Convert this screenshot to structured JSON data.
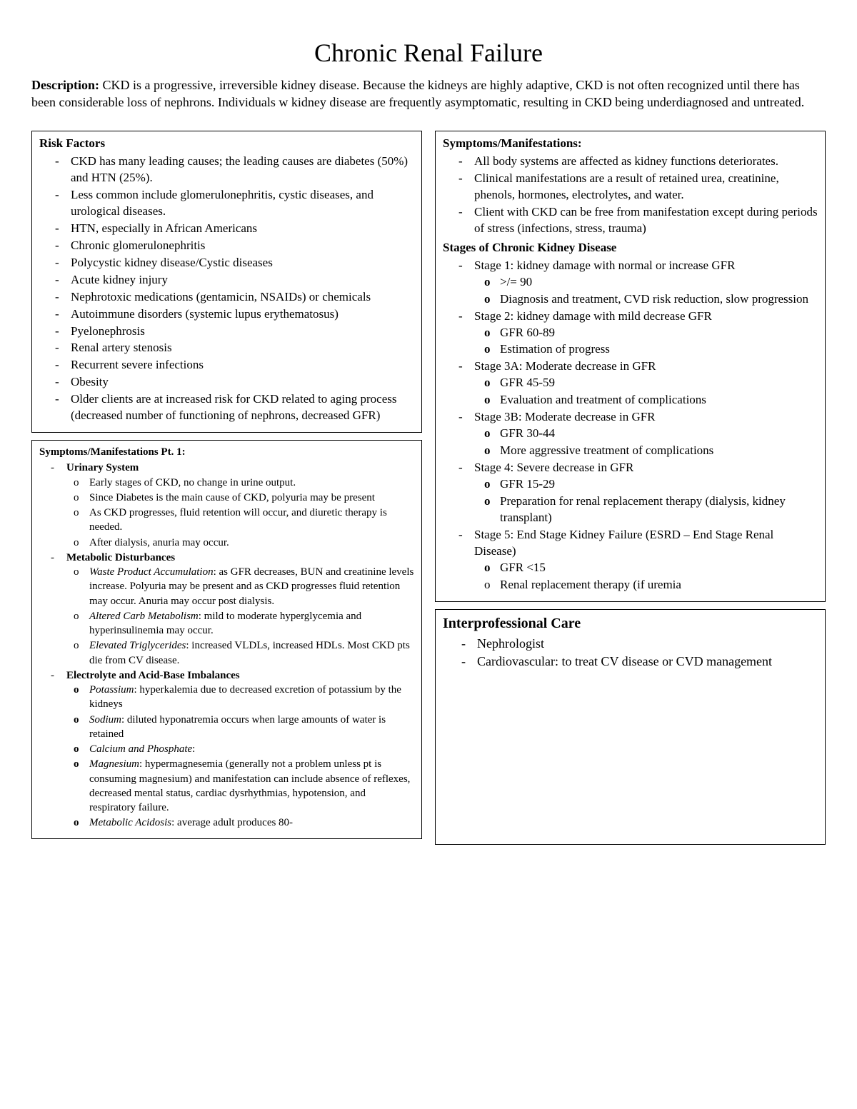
{
  "title": "Chronic Renal Failure",
  "description_label": "Description:",
  "description_text": " CKD is a progressive, irreversible kidney disease.  Because the kidneys are highly adaptive, CKD is not often recognized until there has been considerable loss of nephrons. Individuals w kidney disease are frequently asymptomatic, resulting in CKD being underdiagnosed and untreated.",
  "left": {
    "risk": {
      "heading": "Risk Factors",
      "items": [
        "CKD has many leading causes; the leading causes are diabetes (50%) and HTN (25%).",
        "Less common include glomerulonephritis, cystic diseases, and urological diseases.",
        "HTN, especially in African Americans",
        "Chronic glomerulonephritis",
        "Polycystic kidney disease/Cystic diseases",
        "Acute kidney injury",
        "Nephrotoxic medications (gentamicin, NSAIDs) or chemicals",
        "Autoimmune disorders (systemic lupus erythematosus)",
        "Pyelonephrosis",
        "Renal artery stenosis",
        "Recurrent severe infections",
        "Obesity",
        "Older clients are at increased risk for CKD related to aging process (decreased number of functioning of nephrons, decreased GFR)"
      ]
    },
    "symptoms": {
      "heading": "Symptoms/Manifestations Pt. 1:",
      "urinary_label": "Urinary System",
      "urinary_items": [
        "Early stages of CKD, no change in urine output.",
        "Since Diabetes is the main cause of CKD, polyuria may be present",
        "As CKD progresses, fluid retention will occur, and diuretic therapy is needed.",
        "After dialysis, anuria may occur."
      ],
      "metabolic_label": "Metabolic Disturbances",
      "metabolic_items": [
        {
          "lead": "Waste Product Accumulation",
          "rest": ": as GFR decreases, BUN and creatinine levels increase. Polyuria may be present and as CKD progresses fluid retention may occur. Anuria may occur post dialysis."
        },
        {
          "lead": "Altered Carb Metabolism",
          "rest": ": mild to moderate hyperglycemia and hyperinsulinemia may occur."
        },
        {
          "lead": "Elevated Triglycerides",
          "rest": ": increased VLDLs, increased HDLs. Most CKD pts die from CV disease."
        }
      ],
      "electrolyte_label": "Electrolyte and Acid-Base Imbalances",
      "electrolyte_items": [
        {
          "lead": "Potassium",
          "rest": ": hyperkalemia due to decreased excretion of potassium by the kidneys"
        },
        {
          "lead": "Sodium",
          "rest": ": diluted hyponatremia occurs when large amounts of water is retained"
        },
        {
          "lead": "Calcium and Phosphate",
          "rest": ":"
        },
        {
          "lead": "Magnesium",
          "rest": ": hypermagnesemia (generally not a problem unless pt is consuming magnesium) and manifestation can include absence of reflexes, decreased mental status, cardiac dysrhythmias, hypotension, and respiratory failure."
        },
        {
          "lead": "Metabolic Acidosis",
          "rest": ": average adult produces 80-"
        }
      ]
    }
  },
  "right": {
    "manifest": {
      "heading": "Symptoms/Manifestations:",
      "items": [
        "All body systems are affected as kidney functions deteriorates.",
        "Clinical manifestations are a result of retained urea, creatinine, phenols, hormones, electrolytes, and water.",
        "Client with CKD can be free from manifestation except during periods of stress (infections, stress, trauma)"
      ],
      "stages_heading": "Stages of Chronic Kidney Disease",
      "stages": [
        {
          "label": "Stage 1: kidney damage with normal or increase GFR",
          "subs": [
            ">/= 90",
            "Diagnosis and treatment, CVD risk reduction, slow progression"
          ],
          "sub_bold": [
            true,
            true
          ]
        },
        {
          "label": "Stage 2: kidney damage with mild decrease GFR",
          "subs": [
            "GFR 60-89",
            "Estimation of progress"
          ],
          "sub_bold": [
            true,
            true
          ]
        },
        {
          "label": "Stage 3A: Moderate decrease in GFR",
          "subs": [
            "GFR 45-59",
            "Evaluation and treatment of complications"
          ],
          "sub_bold": [
            true,
            true
          ]
        },
        {
          "label": "Stage 3B: Moderate decrease in GFR",
          "subs": [
            "GFR 30-44",
            "More aggressive treatment of complications"
          ],
          "sub_bold": [
            true,
            true
          ]
        },
        {
          "label": "Stage 4: Severe decrease in GFR",
          "subs": [
            "GFR 15-29",
            "Preparation for renal replacement therapy (dialysis, kidney transplant)"
          ],
          "sub_bold": [
            true,
            true
          ]
        },
        {
          "label": "Stage 5: End Stage Kidney Failure (ESRD – End Stage Renal Disease)",
          "subs": [
            "GFR <15",
            "Renal replacement therapy (if uremia"
          ],
          "sub_bold": [
            true,
            false
          ]
        }
      ]
    },
    "care": {
      "heading": "Interprofessional Care",
      "items": [
        "Nephrologist",
        "Cardiovascular: to treat CV disease or CVD management"
      ]
    }
  }
}
